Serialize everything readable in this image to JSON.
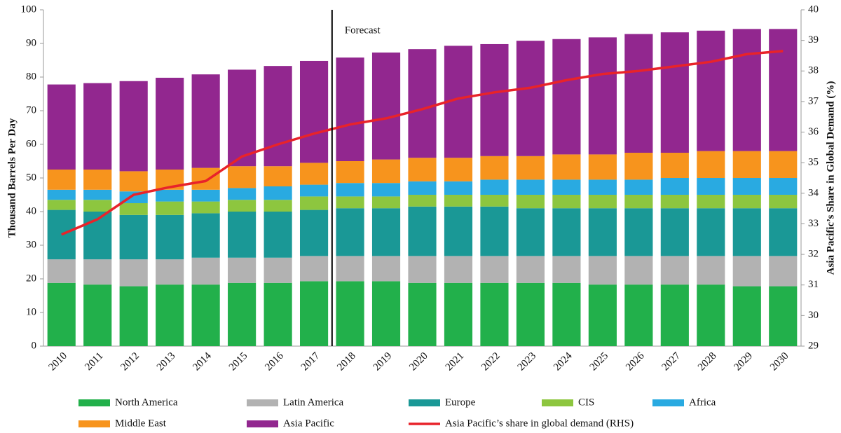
{
  "chart_data": {
    "type": "bar",
    "stacked": true,
    "categories": [
      "2010",
      "2011",
      "2012",
      "2013",
      "2014",
      "2015",
      "2016",
      "2017",
      "2018",
      "2019",
      "2020",
      "2021",
      "2022",
      "2023",
      "2024",
      "2025",
      "2026",
      "2027",
      "2028",
      "2029",
      "2030"
    ],
    "ylabel": "Thousand Barrels Per Day",
    "y2label": "Asia Pacific’s Share in Global Demand (%)",
    "ylim": [
      0,
      100
    ],
    "yticks": [
      0,
      10,
      20,
      30,
      40,
      50,
      60,
      70,
      80,
      90,
      100
    ],
    "y2lim": [
      29,
      40
    ],
    "y2ticks": [
      29,
      30,
      31,
      32,
      33,
      34,
      35,
      36,
      37,
      38,
      39,
      40
    ],
    "grid": false,
    "legend": "bottom",
    "annotations": [
      {
        "text": "Forecast",
        "x": "2018"
      }
    ],
    "series": [
      {
        "name": "North America",
        "color": "#22b04b",
        "values": [
          18.8,
          18.3,
          17.8,
          18.3,
          18.3,
          18.8,
          18.8,
          19.3,
          19.3,
          19.3,
          18.8,
          18.8,
          18.8,
          18.8,
          18.8,
          18.3,
          18.3,
          18.3,
          18.3,
          17.8,
          17.8
        ]
      },
      {
        "name": "Latin America",
        "color": "#b2b2b2",
        "values": [
          7.0,
          7.5,
          8.0,
          7.5,
          8.0,
          7.5,
          7.5,
          7.5,
          7.5,
          7.5,
          8.0,
          8.0,
          8.0,
          8.0,
          8.0,
          8.5,
          8.5,
          8.5,
          8.5,
          9.0,
          9.0
        ]
      },
      {
        "name": "Europe",
        "color": "#1a9896",
        "values": [
          14.7,
          14.2,
          13.2,
          13.2,
          13.2,
          13.7,
          13.7,
          13.7,
          14.2,
          14.2,
          14.7,
          14.7,
          14.7,
          14.2,
          14.2,
          14.2,
          14.2,
          14.2,
          14.2,
          14.2,
          14.2
        ]
      },
      {
        "name": "CIS",
        "color": "#8dc63f",
        "values": [
          3.0,
          3.5,
          3.5,
          4.0,
          3.5,
          3.5,
          3.5,
          4.0,
          3.5,
          3.5,
          3.5,
          3.5,
          3.5,
          4.0,
          4.0,
          4.0,
          4.0,
          4.0,
          4.0,
          4.0,
          4.0
        ]
      },
      {
        "name": "Africa",
        "color": "#29aae1",
        "values": [
          3.0,
          3.0,
          3.5,
          3.5,
          3.5,
          3.5,
          4.0,
          3.5,
          4.0,
          4.0,
          4.0,
          4.0,
          4.5,
          4.5,
          4.5,
          4.5,
          4.5,
          5.0,
          5.0,
          5.0,
          5.0
        ]
      },
      {
        "name": "Middle East",
        "color": "#f7941d",
        "values": [
          6.0,
          6.0,
          6.0,
          6.0,
          6.5,
          6.5,
          6.0,
          6.5,
          6.5,
          7.0,
          7.0,
          7.0,
          7.0,
          7.0,
          7.5,
          7.5,
          8.0,
          7.5,
          8.0,
          8.0,
          8.0
        ]
      },
      {
        "name": "Asia Pacific",
        "color": "#92278f",
        "values": [
          25.3,
          25.7,
          26.8,
          27.3,
          27.8,
          28.7,
          29.8,
          30.3,
          30.8,
          31.8,
          32.3,
          33.3,
          33.3,
          34.3,
          34.3,
          34.8,
          35.3,
          35.8,
          35.8,
          36.3,
          36.3
        ]
      },
      {
        "name": "Asia Pacific’s share in global demand (RHS)",
        "type": "line",
        "axis": "y2",
        "color": "#e8232a",
        "values": [
          32.65,
          33.15,
          33.95,
          34.2,
          34.4,
          35.2,
          35.6,
          35.95,
          36.25,
          36.45,
          36.75,
          37.1,
          37.3,
          37.45,
          37.7,
          37.9,
          38.0,
          38.15,
          38.3,
          38.55,
          38.65
        ]
      }
    ]
  }
}
